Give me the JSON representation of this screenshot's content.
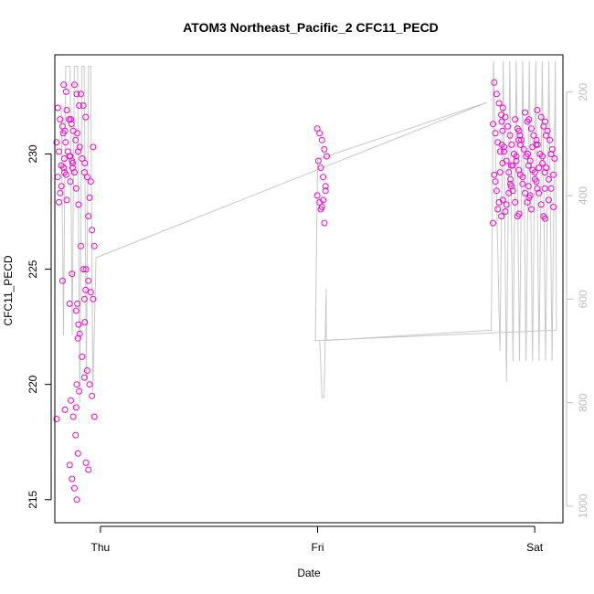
{
  "chart_data": {
    "type": "scatter",
    "title": "ATOM3 Northeast_Pacific_2 CFC11_PECD",
    "xlabel": "Date",
    "ylabel": "CFC11_PECD",
    "x_ticks": [
      "Thu",
      "Fri",
      "Sat"
    ],
    "y_ticks": [
      215,
      220,
      225,
      230
    ],
    "ylim": [
      214,
      234.3
    ],
    "xlim": [
      -0.21,
      2.13
    ],
    "y2_ticks": [
      200,
      400,
      600,
      800,
      1000
    ],
    "y2lim": [
      1032,
      128
    ],
    "grid": false,
    "colors": {
      "points": "#ff00cc",
      "depth_line": "#c8c8c8",
      "axis": "#000000",
      "right_axis": "#bebebe"
    },
    "series": [
      {
        "marker": "open-circle",
        "axis": "left",
        "groups": [
          {
            "x": -0.18,
            "values": [
              218.5,
              218.9,
              224.5,
              228.3,
              229.0,
              229.1,
              229.4,
              229.5,
              230.1,
              230.5,
              231.0,
              231.2,
              231.5,
              232.0,
              232.7,
              233.0,
              228.6,
              227.9
            ]
          },
          {
            "x": -0.15,
            "values": [
              228.0,
              229.2,
              229.6,
              229.9,
              230.1,
              230.5,
              230.9,
              231.3,
              231.5,
              231.9,
              229.8,
              229.4,
              228.8
            ]
          },
          {
            "x": -0.12,
            "values": [
              215.0,
              215.5,
              215.9,
              216.5,
              217.0,
              217.8,
              218.6,
              219.3,
              219.7,
              220.0,
              229.2,
              229.7,
              229.9,
              230.1,
              230.6,
              231.0,
              231.5,
              232.1,
              232.6,
              233.0,
              224.8,
              223.5,
              222.0
            ]
          },
          {
            "x": -0.09,
            "values": [
              219.0,
              220.3,
              221.2,
              222.2,
              223.5,
              224.1,
              225.0,
              226.0,
              227.8,
              228.5,
              229.2,
              229.8,
              230.3,
              230.9,
              231.6,
              232.1,
              232.6,
              222.6,
              223.2,
              223.7
            ]
          },
          {
            "x": -0.05,
            "values": [
              216.3,
              216.6,
              218.6,
              219.5,
              220.0,
              220.6,
              222.7,
              223.7,
              224.0,
              224.5,
              225.0,
              226.0,
              226.7,
              228.1,
              229.0,
              229.6,
              230.3,
              228.8,
              227.3
            ]
          },
          {
            "x": 1.02,
            "values": [
              227.0,
              227.7,
              227.9,
              228.2,
              228.6,
              229.0,
              229.4,
              229.7,
              229.9,
              230.2,
              230.6,
              230.9,
              231.1,
              228.4,
              228.0,
              227.6
            ]
          },
          {
            "x": 1.83,
            "values": [
              227.0,
              227.3,
              227.9,
              228.4,
              229.1,
              229.6,
              230.1,
              230.5,
              230.9,
              231.3,
              231.7,
              232.2,
              232.6,
              233.1,
              231.0,
              229.2,
              227.6,
              228.8
            ]
          },
          {
            "x": 1.87,
            "values": [
              227.5,
              228.0,
              228.6,
              229.2,
              229.7,
              230.1,
              230.4,
              230.8,
              231.2,
              231.6,
              232.0,
              229.5,
              228.3,
              227.8,
              230.3,
              231.4
            ]
          },
          {
            "x": 1.91,
            "values": [
              227.3,
              227.9,
              228.4,
              228.9,
              229.3,
              229.7,
              230.0,
              230.4,
              230.8,
              231.1,
              231.5,
              229.5,
              228.7,
              230.6,
              229.9
            ]
          },
          {
            "x": 1.95,
            "values": [
              227.4,
              227.9,
              228.3,
              228.7,
              229.1,
              229.5,
              229.9,
              230.2,
              230.6,
              231.0,
              231.4,
              231.8,
              229.0,
              230.4,
              228.6
            ]
          },
          {
            "x": 1.99,
            "values": [
              227.6,
              228.1,
              228.5,
              228.9,
              229.3,
              229.7,
              230.0,
              230.4,
              230.8,
              231.1,
              231.5,
              231.9,
              229.2,
              230.3,
              228.2
            ]
          },
          {
            "x": 2.03,
            "values": [
              227.3,
              227.8,
              228.3,
              228.8,
              229.2,
              229.6,
              230.0,
              230.4,
              230.8,
              231.2,
              231.6,
              229.4,
              230.6,
              228.5,
              229.9
            ]
          },
          {
            "x": 2.07,
            "values": [
              227.2,
              227.7,
              228.5,
              228.9,
              229.4,
              229.8,
              230.2,
              230.6,
              231.0,
              231.4,
              229.1,
              230.0,
              228.0
            ]
          }
        ]
      },
      {
        "marker": "line",
        "axis": "right",
        "note": "depth profile (y2 units)",
        "points": [
          [
            -0.18,
            225
          ],
          [
            -0.17,
            670
          ],
          [
            -0.16,
            150
          ],
          [
            -0.14,
            150
          ],
          [
            -0.13,
            670
          ],
          [
            -0.12,
            150
          ],
          [
            -0.105,
            150
          ],
          [
            -0.095,
            800
          ],
          [
            -0.085,
            150
          ],
          [
            -0.075,
            150
          ],
          [
            -0.065,
            760
          ],
          [
            -0.055,
            150
          ],
          [
            -0.045,
            150
          ],
          [
            -0.035,
            780
          ],
          [
            -0.02,
            520
          ],
          [
            1.78,
            220
          ],
          [
            1.0,
            330
          ],
          [
            0.99,
            680
          ],
          [
            1.01,
            680
          ],
          [
            1.02,
            790
          ],
          [
            1.03,
            790
          ],
          [
            1.04,
            580
          ],
          [
            1.04,
            680
          ],
          [
            1.8,
            660
          ],
          [
            1.81,
            140
          ],
          [
            1.84,
            700
          ],
          [
            1.855,
            140
          ],
          [
            1.87,
            760
          ],
          [
            1.885,
            140
          ],
          [
            1.9,
            720
          ],
          [
            1.915,
            140
          ],
          [
            1.93,
            720
          ],
          [
            1.945,
            140
          ],
          [
            1.96,
            720
          ],
          [
            1.975,
            140
          ],
          [
            1.99,
            720
          ],
          [
            2.005,
            140
          ],
          [
            2.02,
            720
          ],
          [
            2.035,
            140
          ],
          [
            2.05,
            720
          ],
          [
            2.065,
            140
          ],
          [
            2.08,
            720
          ],
          [
            2.095,
            140
          ],
          [
            2.1,
            660
          ],
          [
            1.0,
            680
          ]
        ]
      }
    ]
  }
}
